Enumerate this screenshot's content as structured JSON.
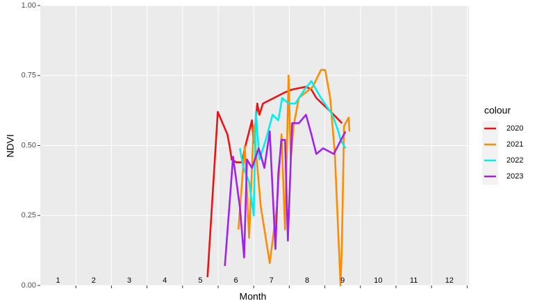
{
  "chart_data": {
    "type": "line",
    "x_label": "Month",
    "y_label": "NDVI",
    "month_labels": [
      "1",
      "2",
      "3",
      "4",
      "5",
      "6",
      "7",
      "8",
      "9",
      "10",
      "11",
      "12"
    ],
    "xlim": [
      0.5,
      12.55
    ],
    "ylim": [
      0,
      1
    ],
    "yticks": [
      {
        "value": 0,
        "label": "0.00"
      },
      {
        "value": 0.25,
        "label": "0.25"
      },
      {
        "value": 0.5,
        "label": "0.50"
      },
      {
        "value": 0.75,
        "label": "0.75"
      },
      {
        "value": 1,
        "label": "1.00"
      }
    ],
    "grid": true,
    "legend_title": "colour",
    "legend_position": "right",
    "series": [
      {
        "name": "2020",
        "color": "#ee1111",
        "x": [
          5.2,
          5.49,
          5.76,
          5.82,
          5.88,
          6.02,
          6.17,
          6.25,
          6.45,
          6.5,
          6.6,
          6.66,
          6.76,
          7.38,
          7.58,
          7.97,
          8.12,
          8.26,
          8.75,
          8.98
        ],
        "values": [
          0.03,
          0.62,
          0.54,
          0.5,
          0.45,
          0.44,
          0.44,
          0.49,
          0.59,
          0.51,
          0.65,
          0.61,
          0.65,
          0.69,
          0.7,
          0.71,
          0.7,
          0.67,
          0.61,
          0.58
        ]
      },
      {
        "name": "2021",
        "color": "#ff8c00",
        "x": [
          6.07,
          6.25,
          6.37,
          6.5,
          6.7,
          6.95,
          7.15,
          7.28,
          7.38,
          7.48,
          7.54,
          7.62,
          7.77,
          8.16,
          8.39,
          8.51,
          8.65,
          8.78,
          8.94,
          8.98,
          9.04,
          9.17,
          9.19
        ],
        "values": [
          0.2,
          0.5,
          0.17,
          0.57,
          0.28,
          0.08,
          0.28,
          0.54,
          0.2,
          0.75,
          0.45,
          0.57,
          0.67,
          0.71,
          0.77,
          0.77,
          0.67,
          0.47,
          0.0,
          0.15,
          0.57,
          0.6,
          0.55
        ]
      },
      {
        "name": "2022",
        "color": "#00eeee",
        "x": [
          6.11,
          6.21,
          6.37,
          6.5,
          6.56,
          6.66,
          6.84,
          7.03,
          7.19,
          7.3,
          7.48,
          7.67,
          7.93,
          8.12,
          8.39,
          8.71,
          8.88,
          8.94,
          9.08
        ],
        "values": [
          0.49,
          0.42,
          0.37,
          0.25,
          0.62,
          0.45,
          0.52,
          0.61,
          0.59,
          0.67,
          0.65,
          0.65,
          0.7,
          0.73,
          0.67,
          0.61,
          0.55,
          0.52,
          0.49
        ]
      },
      {
        "name": "2023",
        "color": "#a020f0",
        "x": [
          5.69,
          5.92,
          6.11,
          6.23,
          6.31,
          6.45,
          6.64,
          6.8,
          6.95,
          7.11,
          7.19,
          7.28,
          7.38,
          7.46,
          7.58,
          7.77,
          7.97,
          8.12,
          8.26,
          8.45,
          8.75,
          9.08
        ],
        "values": [
          0.07,
          0.46,
          0.28,
          0.1,
          0.45,
          0.42,
          0.49,
          0.42,
          0.55,
          0.13,
          0.4,
          0.52,
          0.52,
          0.16,
          0.58,
          0.58,
          0.61,
          0.54,
          0.47,
          0.49,
          0.47,
          0.55
        ]
      }
    ]
  }
}
